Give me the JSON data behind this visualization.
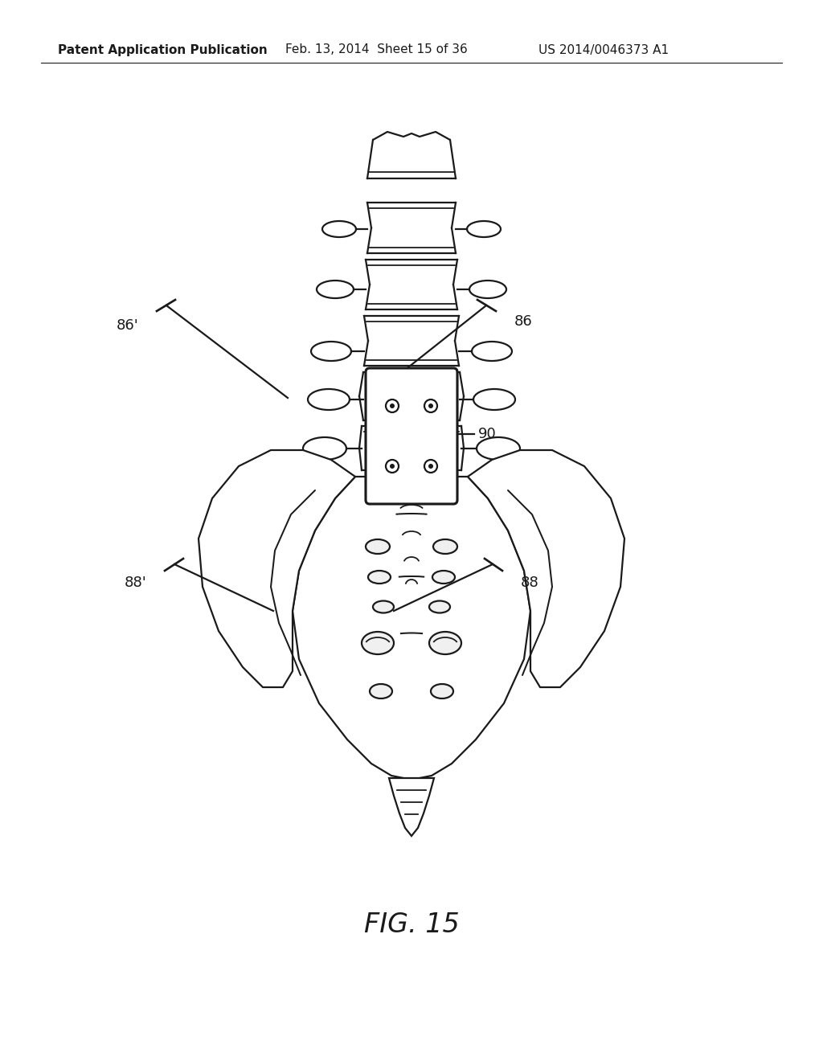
{
  "header_left": "Patent Application Publication",
  "header_mid": "Feb. 13, 2014  Sheet 15 of 36",
  "header_right": "US 2014/0046373 A1",
  "fig_label": "FIG. 15",
  "labels": {
    "86_prime": "86'",
    "86": "86",
    "88_prime": "88'",
    "88": "88",
    "90": "90"
  },
  "bg_color": "#ffffff",
  "line_color": "#1a1a1a",
  "line_width": 1.6
}
